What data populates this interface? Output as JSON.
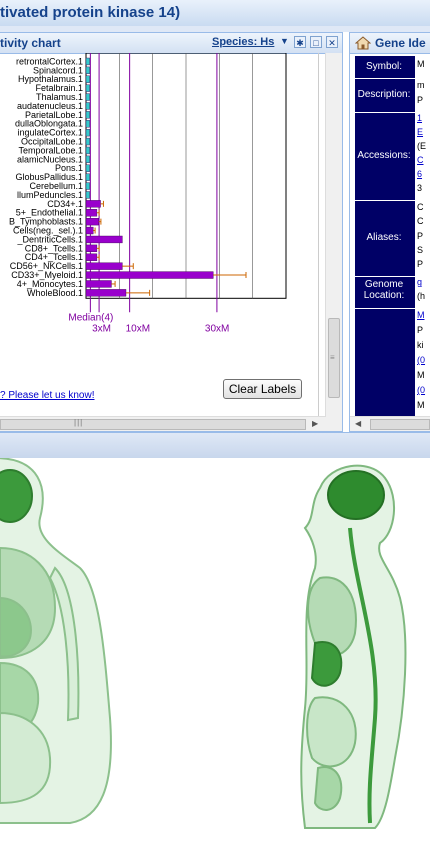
{
  "window": {
    "title": "tivated protein kinase 14)"
  },
  "activity_panel": {
    "title": "tivity chart",
    "species_label": "Species: Hs",
    "species_dropdown_icon": "chevron-down-icon",
    "header_buttons": [
      "gear-icon",
      "restore-icon",
      "close-icon"
    ],
    "clear_labels_button": "Clear Labels",
    "feedback_link": "? Please let us know!"
  },
  "chart_data": {
    "type": "bar",
    "orientation": "horizontal",
    "categories": [
      "retrontalCortex.1",
      "Spinalcord.1",
      "Hypothalamus.1",
      "Fetalbrain.1",
      "Thalamus.1",
      "audatenucleus.1",
      "ParietalLobe.1",
      "dullaOblongata.1",
      "ingulateCortex.1",
      "OccipitalLobe.1",
      "TemporalLobe.1",
      "alamicNucleus.1",
      "Pons.1",
      "GlobusPallidus.1",
      "Cerebellum.1",
      "llumPeduncles.1",
      "CD34+.1",
      "5+_Endothelial.1",
      "B_Tymphoblasts.1",
      "Cells(neg._sel.).1",
      "_DentriticCells.1",
      "CD8+_Tcells.1",
      "CD4+_Tcells.1",
      "CD56+_NKCells.1",
      "CD33+_Myeloid.1",
      "4+_Monocytes.1",
      "WholeBlood.1"
    ],
    "values": [
      1.0,
      1.0,
      1.0,
      1.0,
      1.0,
      1.0,
      1.0,
      1.0,
      1.0,
      1.0,
      1.0,
      1.0,
      1.0,
      1.0,
      1.0,
      1.0,
      4.0,
      3.0,
      3.5,
      2.0,
      10.0,
      3.0,
      3.0,
      10.0,
      35.0,
      7.0,
      11.0
    ],
    "errors": [
      0,
      0,
      0,
      0,
      0,
      0,
      0,
      0,
      0,
      0,
      0,
      0,
      0,
      0,
      0,
      0,
      0.8,
      0.6,
      0.6,
      0.5,
      0,
      0.6,
      0.6,
      3.0,
      9.0,
      1.0,
      6.5
    ],
    "xlim": [
      0,
      55
    ],
    "reference_lines": [
      {
        "label": "Median(4)",
        "value": 1.2
      },
      {
        "label": "3xM",
        "value": 3.6
      },
      {
        "label": "10xM",
        "value": 12.0
      },
      {
        "label": "30xM",
        "value": 36.0
      }
    ],
    "bar_color": "#9900cc",
    "small_bar_color": "#33cccc",
    "error_color": "#cc6600",
    "grid": true,
    "title": "",
    "xlabel": "",
    "ylabel": ""
  },
  "gene_panel": {
    "title": "Gene Ide",
    "icon": "home-icon",
    "rows": [
      {
        "label": "Symbol:",
        "values": [
          "M"
        ]
      },
      {
        "label": "Description:",
        "values": [
          "m",
          "P"
        ]
      },
      {
        "label": "Accessions:",
        "values": [
          "1",
          "E",
          "(E",
          "C",
          "6",
          "3"
        ]
      },
      {
        "label": "Aliases:",
        "values": [
          "C",
          "C",
          "P",
          "S",
          "P"
        ]
      },
      {
        "label": "Genome\nLocation:",
        "values": [
          "g",
          "(h"
        ]
      },
      {
        "label": "",
        "values": [
          "M",
          "P",
          "ki",
          "(0",
          "M",
          "(0",
          "M"
        ]
      }
    ]
  },
  "colors": {
    "header_text": "#15428b",
    "gene_header_bg": "#000066",
    "organ_green": "#9ed49e"
  }
}
